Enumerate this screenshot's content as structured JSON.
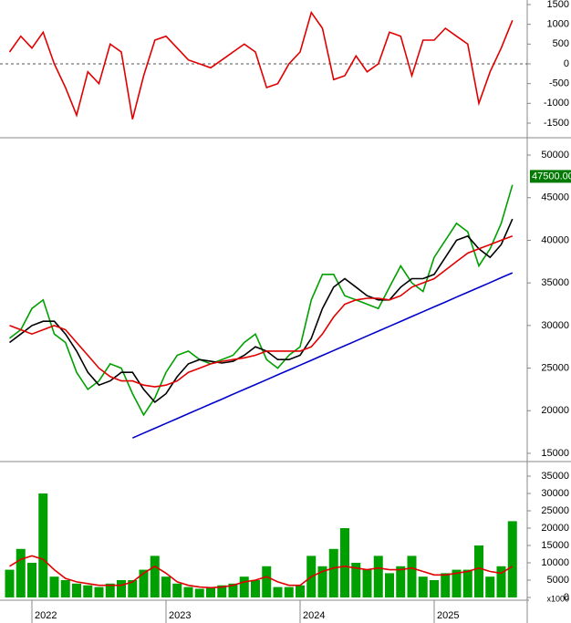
{
  "chart_data": [
    {
      "type": "line",
      "ylim": [
        -1846,
        1615
      ],
      "yticks": [
        1500,
        1000,
        500,
        0,
        -500,
        -1000,
        -1500
      ],
      "hline": 0,
      "series": [
        {
          "color": "#e00000",
          "values": [
            300,
            700,
            400,
            800,
            0,
            -600,
            -1300,
            -200,
            -500,
            500,
            300,
            -1400,
            -300,
            600,
            700,
            400,
            100,
            0,
            -100,
            100,
            300,
            500,
            300,
            -600,
            -500,
            0,
            300,
            1300,
            900,
            -400,
            -300,
            200,
            -200,
            0,
            800,
            700,
            -300,
            600,
            600,
            900,
            700,
            500,
            -1000,
            -200,
            400,
            1100
          ]
        }
      ]
    },
    {
      "type": "line",
      "ylim": [
        14140,
        51930
      ],
      "yticks": [
        50000,
        45000,
        40000,
        35000,
        30000,
        25000,
        20000,
        15000
      ],
      "last_price": {
        "value": 47500,
        "label": "47500.00"
      },
      "series": [
        {
          "color": "#00a000",
          "values": [
            28500,
            29500,
            32000,
            33000,
            29000,
            28000,
            24500,
            22500,
            23500,
            25500,
            25000,
            22000,
            19500,
            21500,
            24500,
            26500,
            27000,
            26000,
            25500,
            26000,
            26500,
            28000,
            29000,
            26000,
            25000,
            26500,
            27500,
            33000,
            36000,
            36000,
            33500,
            33000,
            32500,
            32000,
            34500,
            37000,
            35000,
            34000,
            38000,
            40000,
            42000,
            41000,
            37000,
            39000,
            42000,
            46500
          ]
        },
        {
          "color": "#000000",
          "values": [
            28000,
            29000,
            30000,
            30500,
            30500,
            29000,
            27000,
            24500,
            23000,
            23500,
            24500,
            24500,
            22500,
            21000,
            22000,
            24000,
            25500,
            26000,
            25800,
            25600,
            25800,
            26500,
            27500,
            27000,
            26000,
            26000,
            26500,
            28500,
            32000,
            34500,
            35500,
            34500,
            33500,
            33000,
            33000,
            34500,
            35500,
            35500,
            36000,
            38000,
            40000,
            40500,
            39000,
            38000,
            39500,
            42500
          ]
        },
        {
          "color": "#e00000",
          "values": [
            30000,
            29500,
            29000,
            29500,
            30000,
            29500,
            28000,
            26500,
            25000,
            24000,
            23500,
            23500,
            23000,
            22800,
            23000,
            23500,
            24500,
            25000,
            25500,
            25800,
            26000,
            26200,
            26500,
            27000,
            27000,
            27000,
            27000,
            27500,
            29000,
            31000,
            32500,
            33000,
            33200,
            33200,
            33000,
            33500,
            34500,
            35000,
            35500,
            36500,
            37500,
            38500,
            39000,
            39500,
            40000,
            40500
          ]
        },
        {
          "color": "#0000cc",
          "values": [
            null,
            null,
            null,
            null,
            null,
            null,
            null,
            null,
            null,
            null,
            null,
            16800,
            17370,
            17940,
            18510,
            19080,
            19650,
            20220,
            20790,
            21360,
            21930,
            22500,
            23070,
            23640,
            24210,
            24780,
            25350,
            25920,
            26490,
            27060,
            27630,
            28200,
            28770,
            29340,
            29910,
            30480,
            31050,
            31620,
            32190,
            32760,
            33330,
            33900,
            34470,
            35040,
            35610,
            36180
          ]
        }
      ]
    },
    {
      "type": "bar",
      "ylim": [
        -530,
        38950
      ],
      "yticks": [
        35000,
        30000,
        25000,
        20000,
        15000,
        10000,
        5000,
        0
      ],
      "unit_label": "x1000",
      "categories": [
        null,
        null,
        "2022",
        null,
        null,
        null,
        null,
        null,
        null,
        null,
        null,
        null,
        null,
        null,
        "2023",
        null,
        null,
        null,
        null,
        null,
        null,
        null,
        null,
        null,
        null,
        null,
        "2024",
        null,
        null,
        null,
        null,
        null,
        null,
        null,
        null,
        null,
        null,
        null,
        "2025",
        null,
        null,
        null,
        null,
        null,
        null,
        null
      ],
      "series": [
        {
          "type": "bar",
          "color": "#00a000",
          "values": [
            8000,
            14000,
            10000,
            30000,
            6000,
            5000,
            4000,
            3500,
            3000,
            4000,
            5000,
            5000,
            8000,
            12000,
            6000,
            4000,
            3000,
            2500,
            3000,
            3500,
            4000,
            6000,
            5000,
            9000,
            3000,
            3000,
            3500,
            12000,
            9000,
            14000,
            20000,
            10000,
            8000,
            12000,
            7000,
            9000,
            12000,
            6000,
            5000,
            7000,
            8000,
            8000,
            15000,
            6000,
            9000,
            22000
          ]
        },
        {
          "type": "line",
          "color": "#e00000",
          "values": [
            9000,
            11000,
            12000,
            11000,
            8000,
            5500,
            4500,
            4000,
            3500,
            3500,
            3500,
            4500,
            7000,
            9000,
            7000,
            4500,
            3500,
            3000,
            2800,
            3000,
            3500,
            4500,
            5000,
            6000,
            4500,
            3500,
            3500,
            6000,
            7500,
            8500,
            9000,
            8500,
            8000,
            8500,
            8000,
            8000,
            8500,
            7500,
            6500,
            6500,
            7000,
            7500,
            8500,
            7500,
            7000,
            9000
          ]
        }
      ]
    }
  ]
}
